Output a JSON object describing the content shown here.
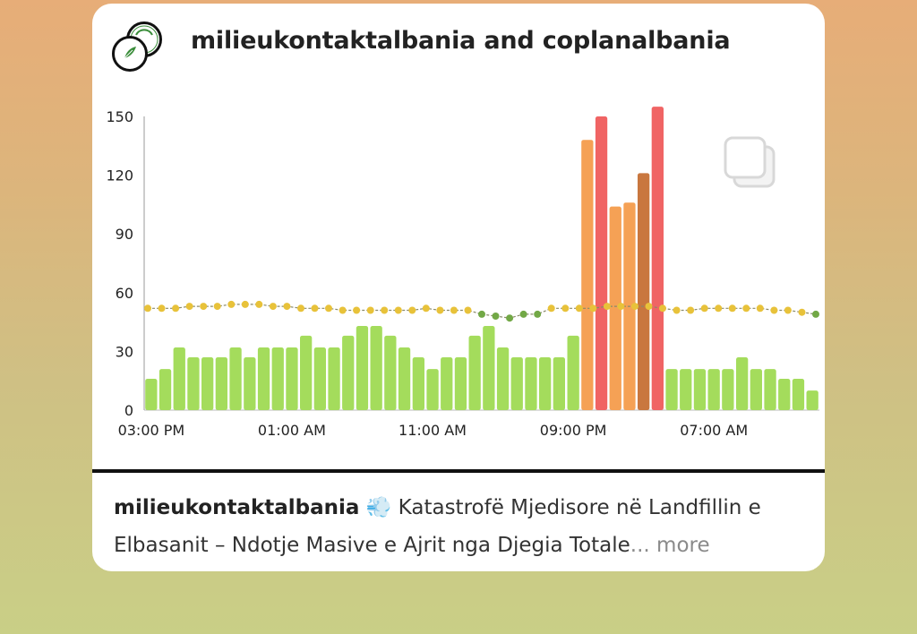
{
  "header": {
    "title": "milieukontaktalbania and coplanalbania",
    "avatar_icon": "profile-logo-icon"
  },
  "colors": {
    "good": "#a4dc5c",
    "moderate": "#f5a155",
    "unhealthy_sensitive": "#c9773f",
    "unhealthy": "#f06464",
    "line_yellow": "#e8c23a",
    "line_green": "#72a846"
  },
  "chart_data": {
    "type": "bar",
    "title": "",
    "xlabel": "",
    "ylabel": "",
    "ylim": [
      0,
      150
    ],
    "yticks": [
      "0",
      "30",
      "60",
      "90",
      "120",
      "150"
    ],
    "xtick_labels": [
      {
        "label": "03:00 PM",
        "index": 0
      },
      {
        "label": "01:00 AM",
        "index": 10
      },
      {
        "label": "11:00 AM",
        "index": 20
      },
      {
        "label": "09:00 PM",
        "index": 30
      },
      {
        "label": "07:00 AM",
        "index": 40
      }
    ],
    "values": [
      16,
      21,
      32,
      27,
      27,
      27,
      32,
      27,
      32,
      32,
      32,
      38,
      32,
      32,
      38,
      43,
      43,
      38,
      32,
      27,
      21,
      27,
      27,
      38,
      43,
      32,
      27,
      27,
      27,
      27,
      38,
      138,
      150,
      104,
      106,
      121,
      155,
      21,
      21,
      21,
      21,
      21,
      27,
      21,
      21,
      16,
      16,
      10
    ],
    "bar_levels": [
      "good",
      "good",
      "good",
      "good",
      "good",
      "good",
      "good",
      "good",
      "good",
      "good",
      "good",
      "good",
      "good",
      "good",
      "good",
      "good",
      "good",
      "good",
      "good",
      "good",
      "good",
      "good",
      "good",
      "good",
      "good",
      "good",
      "good",
      "good",
      "good",
      "good",
      "good",
      "moderate",
      "unhealthy",
      "moderate",
      "moderate",
      "unhealthy_sensitive",
      "unhealthy",
      "good",
      "good",
      "good",
      "good",
      "good",
      "good",
      "good",
      "good",
      "good",
      "good",
      "good"
    ],
    "line_values": [
      52,
      52,
      52,
      53,
      53,
      53,
      54,
      54,
      54,
      53,
      53,
      52,
      52,
      52,
      51,
      51,
      51,
      51,
      51,
      51,
      52,
      51,
      51,
      51,
      49,
      48,
      47,
      49,
      49,
      52,
      52,
      52,
      52,
      53,
      53,
      53,
      53,
      52,
      51,
      51,
      52,
      52,
      52,
      52,
      52,
      51,
      51,
      50,
      49
    ],
    "line_levels": [
      "yellow",
      "yellow",
      "yellow",
      "yellow",
      "yellow",
      "yellow",
      "yellow",
      "yellow",
      "yellow",
      "yellow",
      "yellow",
      "yellow",
      "yellow",
      "yellow",
      "yellow",
      "yellow",
      "yellow",
      "yellow",
      "yellow",
      "yellow",
      "yellow",
      "yellow",
      "yellow",
      "yellow",
      "green",
      "green",
      "green",
      "green",
      "green",
      "yellow",
      "yellow",
      "yellow",
      "yellow",
      "yellow",
      "yellow",
      "yellow",
      "yellow",
      "yellow",
      "yellow",
      "yellow",
      "yellow",
      "yellow",
      "yellow",
      "yellow",
      "yellow",
      "yellow",
      "yellow",
      "yellow",
      "green"
    ],
    "grid": false,
    "legend": "none"
  },
  "post": {
    "multi_image_icon": "multiple-images-icon",
    "caption_user": "milieukontaktalbania",
    "caption_emoji": "💨",
    "caption_text": " Katastrofë Mjedisore në Landfillin e Elbasanit – Ndotje Masive e Ajrit nga Djegia Totale",
    "caption_ellipsis": "...",
    "more_label": " more"
  }
}
